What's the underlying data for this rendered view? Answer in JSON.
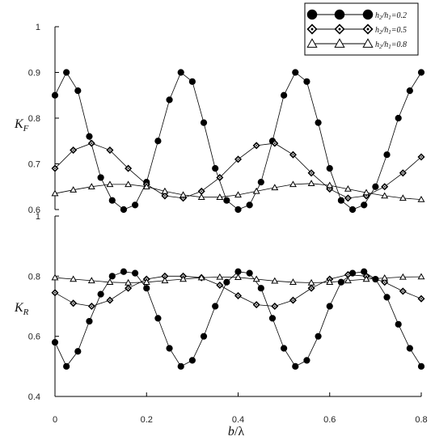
{
  "chart_data": [
    {
      "type": "line",
      "panel": "top",
      "ylabel": "K",
      "ylabel_sub": "F",
      "xlim": [
        0,
        0.8
      ],
      "ylim": [
        0.6,
        1.0
      ],
      "yticks": [
        0.6,
        0.7,
        0.8,
        0.9,
        1
      ],
      "ytick_labels": [
        "0.6",
        "0.7",
        "0.8",
        "0.9",
        "1"
      ],
      "grid": false,
      "series": [
        {
          "name": "h2/h1=0.2",
          "marker": "filled-circle",
          "x": [
            0.0,
            0.025,
            0.05,
            0.075,
            0.1,
            0.125,
            0.15,
            0.175,
            0.2,
            0.225,
            0.25,
            0.275,
            0.3,
            0.325,
            0.35,
            0.375,
            0.4,
            0.425,
            0.45,
            0.475,
            0.5,
            0.525,
            0.55,
            0.575,
            0.6,
            0.625,
            0.65,
            0.675,
            0.7,
            0.725,
            0.75,
            0.775,
            0.8
          ],
          "values": [
            0.85,
            0.9,
            0.86,
            0.76,
            0.67,
            0.62,
            0.6,
            0.61,
            0.66,
            0.75,
            0.84,
            0.9,
            0.88,
            0.79,
            0.69,
            0.62,
            0.6,
            0.61,
            0.66,
            0.75,
            0.85,
            0.9,
            0.88,
            0.79,
            0.69,
            0.62,
            0.6,
            0.61,
            0.65,
            0.72,
            0.8,
            0.86,
            0.9
          ]
        },
        {
          "name": "h2/h1=0.5",
          "marker": "diamond",
          "x": [
            0.0,
            0.04,
            0.08,
            0.12,
            0.16,
            0.2,
            0.24,
            0.28,
            0.32,
            0.36,
            0.4,
            0.44,
            0.48,
            0.52,
            0.56,
            0.6,
            0.64,
            0.68,
            0.72,
            0.76,
            0.8
          ],
          "values": [
            0.69,
            0.73,
            0.745,
            0.73,
            0.69,
            0.655,
            0.63,
            0.625,
            0.64,
            0.67,
            0.71,
            0.74,
            0.745,
            0.72,
            0.68,
            0.645,
            0.625,
            0.63,
            0.65,
            0.68,
            0.715
          ]
        },
        {
          "name": "h2/h1=0.8",
          "marker": "open-triangle",
          "x": [
            0.0,
            0.04,
            0.08,
            0.12,
            0.16,
            0.2,
            0.24,
            0.28,
            0.32,
            0.36,
            0.4,
            0.44,
            0.48,
            0.52,
            0.56,
            0.6,
            0.64,
            0.68,
            0.72,
            0.76,
            0.8
          ],
          "values": [
            0.635,
            0.643,
            0.65,
            0.655,
            0.655,
            0.65,
            0.64,
            0.632,
            0.627,
            0.627,
            0.632,
            0.64,
            0.648,
            0.655,
            0.657,
            0.653,
            0.645,
            0.637,
            0.63,
            0.625,
            0.622
          ]
        }
      ]
    },
    {
      "type": "line",
      "panel": "bottom",
      "ylabel": "K",
      "ylabel_sub": "R",
      "xlabel": "b/λ",
      "xlim": [
        0,
        0.8
      ],
      "ylim": [
        0.4,
        1.0
      ],
      "xticks": [
        0,
        0.2,
        0.4,
        0.6,
        0.8
      ],
      "xtick_labels": [
        "0",
        "0.2",
        "0.4",
        "0.6",
        "0.8"
      ],
      "yticks": [
        0.4,
        0.6,
        0.8,
        1
      ],
      "ytick_labels": [
        "0.4",
        "0.6",
        "0.8",
        "1"
      ],
      "grid": false,
      "series": [
        {
          "name": "h2/h1=0.2",
          "marker": "filled-circle",
          "x": [
            0.0,
            0.025,
            0.05,
            0.075,
            0.1,
            0.125,
            0.15,
            0.175,
            0.2,
            0.225,
            0.25,
            0.275,
            0.3,
            0.325,
            0.35,
            0.375,
            0.4,
            0.425,
            0.45,
            0.475,
            0.5,
            0.525,
            0.55,
            0.575,
            0.6,
            0.625,
            0.65,
            0.675,
            0.7,
            0.725,
            0.75,
            0.775,
            0.8
          ],
          "values": [
            0.58,
            0.5,
            0.55,
            0.65,
            0.74,
            0.8,
            0.815,
            0.81,
            0.76,
            0.66,
            0.56,
            0.5,
            0.52,
            0.6,
            0.7,
            0.78,
            0.815,
            0.81,
            0.76,
            0.66,
            0.56,
            0.5,
            0.52,
            0.6,
            0.7,
            0.78,
            0.81,
            0.815,
            0.79,
            0.73,
            0.64,
            0.56,
            0.5
          ]
        },
        {
          "name": "h2/h1=0.5",
          "marker": "diamond",
          "x": [
            0.0,
            0.04,
            0.08,
            0.12,
            0.16,
            0.2,
            0.24,
            0.28,
            0.32,
            0.36,
            0.4,
            0.44,
            0.48,
            0.52,
            0.56,
            0.6,
            0.64,
            0.68,
            0.72,
            0.76,
            0.8
          ],
          "values": [
            0.745,
            0.71,
            0.7,
            0.72,
            0.76,
            0.79,
            0.8,
            0.8,
            0.795,
            0.77,
            0.735,
            0.705,
            0.7,
            0.72,
            0.76,
            0.79,
            0.805,
            0.8,
            0.78,
            0.75,
            0.725
          ]
        },
        {
          "name": "h2/h1=0.8",
          "marker": "open-triangle",
          "x": [
            0.0,
            0.04,
            0.08,
            0.12,
            0.16,
            0.2,
            0.24,
            0.28,
            0.32,
            0.36,
            0.4,
            0.44,
            0.48,
            0.52,
            0.56,
            0.6,
            0.64,
            0.68,
            0.72,
            0.76,
            0.8
          ],
          "values": [
            0.795,
            0.79,
            0.785,
            0.78,
            0.778,
            0.78,
            0.785,
            0.79,
            0.795,
            0.797,
            0.796,
            0.79,
            0.784,
            0.78,
            0.778,
            0.78,
            0.785,
            0.79,
            0.794,
            0.797,
            0.798
          ]
        }
      ]
    }
  ],
  "legend": {
    "entries": [
      {
        "main": "h",
        "sub1": "2",
        "mid": "/h",
        "sub2": "1",
        "tail": "=0.2",
        "marker": "filled-circle"
      },
      {
        "main": "h",
        "sub1": "2",
        "mid": "/h",
        "sub2": "1",
        "tail": "=0.5",
        "marker": "diamond"
      },
      {
        "main": "h",
        "sub1": "2",
        "mid": "/h",
        "sub2": "1",
        "tail": "=0.8",
        "marker": "open-triangle"
      }
    ],
    "placement": "top-right"
  },
  "xlabel_parts": {
    "italic": "b",
    "rest": "/λ"
  }
}
